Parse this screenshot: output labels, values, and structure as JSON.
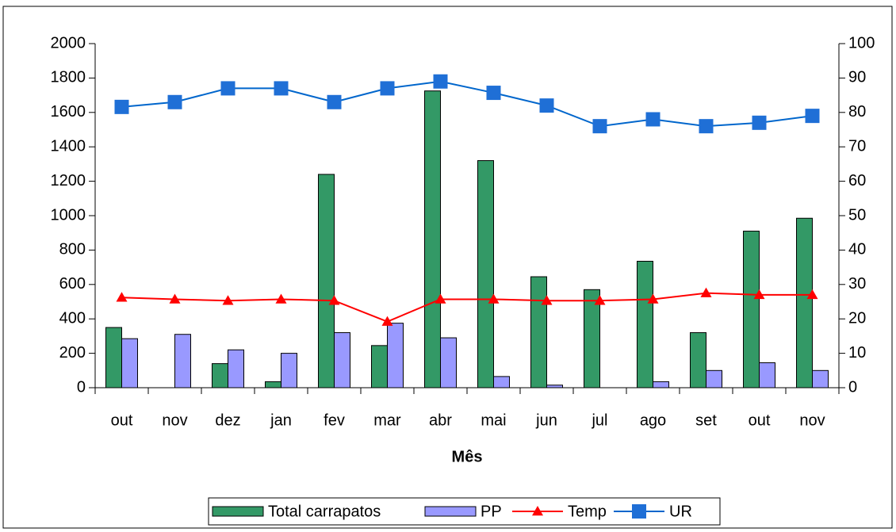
{
  "chart_data": {
    "type": "bar-line",
    "xlabel": "Mês",
    "categories": [
      "out",
      "nov",
      "dez",
      "jan",
      "fev",
      "mar",
      "abr",
      "mai",
      "jun",
      "jul",
      "ago",
      "set",
      "out",
      "nov"
    ],
    "series": [
      {
        "name": "Total carrapatos",
        "type": "bar",
        "color": "#339966",
        "axis": "y",
        "values": [
          350,
          0,
          140,
          35,
          1240,
          245,
          1725,
          1320,
          645,
          570,
          735,
          320,
          910,
          985
        ]
      },
      {
        "name": "PP",
        "type": "bar",
        "color": "#9999ff",
        "axis": "y",
        "values": [
          285,
          310,
          220,
          200,
          320,
          375,
          290,
          65,
          15,
          0,
          35,
          100,
          145,
          100
        ]
      },
      {
        "name": "Temp",
        "type": "line",
        "color": "#ff0000",
        "marker": "triangle",
        "axis": "y2",
        "values": [
          26.2,
          25.7,
          25.3,
          25.7,
          25.3,
          19.2,
          25.7,
          25.7,
          25.3,
          25.3,
          25.7,
          27.5,
          27,
          27
        ]
      },
      {
        "name": "UR",
        "type": "line",
        "color": "#0066cc",
        "marker": "square",
        "axis": "y2",
        "values": [
          81.6,
          83,
          87,
          87,
          83,
          87,
          89,
          85.7,
          82,
          76,
          78,
          76,
          77,
          79
        ]
      }
    ],
    "ylim": [
      0,
      2000
    ],
    "yticks": [
      0,
      200,
      400,
      600,
      800,
      1000,
      1200,
      1400,
      1600,
      1800,
      2000
    ],
    "y2lim": [
      0,
      100
    ],
    "y2ticks": [
      0,
      10,
      20,
      30,
      40,
      50,
      60,
      70,
      80,
      90,
      100
    ],
    "legend": "bottom"
  }
}
